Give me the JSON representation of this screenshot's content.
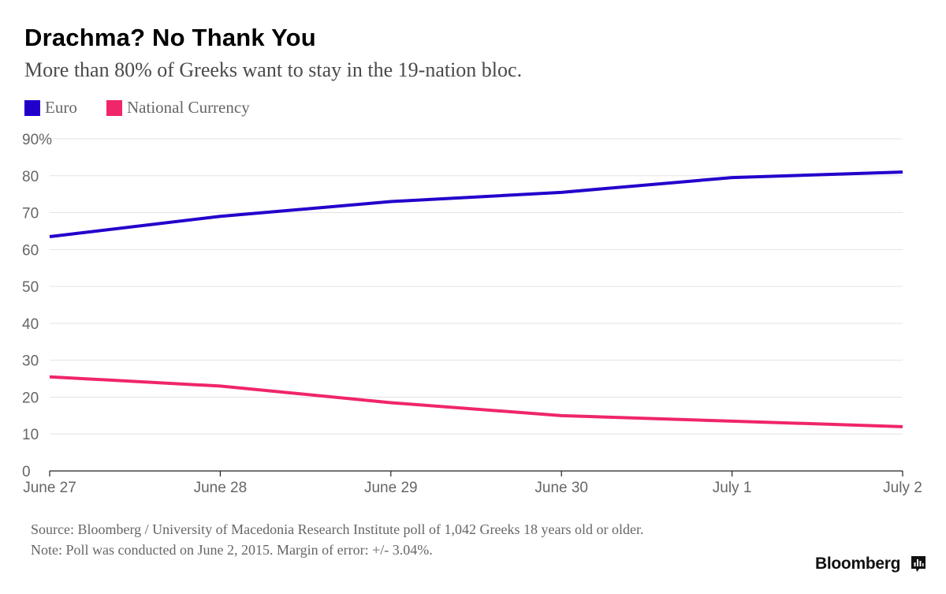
{
  "title": "Drachma? No Thank You",
  "subtitle": "More than 80% of Greeks want to stay in the 19-nation bloc.",
  "footer": {
    "source": "Source: Bloomberg / University of Macedonia Research Institute poll of 1,042 Greeks 18 years old or older.",
    "note": "Note: Poll was conducted on June 2, 2015. Margin of error: +/- 3.04%."
  },
  "brand": "Bloomberg",
  "brand_icon": "bloomberg-terminal-icon",
  "chart_data": {
    "type": "line",
    "title": "Drachma? No Thank You",
    "subtitle": "More than 80% of Greeks want to stay in the 19-nation bloc.",
    "xlabel": "",
    "ylabel": "",
    "categories": [
      "June 27",
      "June 28",
      "June 29",
      "June 30",
      "July 1",
      "July 2"
    ],
    "ylim": [
      0,
      90
    ],
    "yticks": [
      0,
      10,
      20,
      30,
      40,
      50,
      60,
      70,
      80,
      90
    ],
    "ytick_labels": [
      "0",
      "10",
      "20",
      "30",
      "40",
      "50",
      "60",
      "70",
      "80",
      "90%"
    ],
    "grid": true,
    "legend": "top-left",
    "series": [
      {
        "name": "Euro",
        "color": "#2200cc",
        "values": [
          63.5,
          69,
          73,
          75.5,
          79.5,
          81
        ]
      },
      {
        "name": "National Currency",
        "color": "#f0256a",
        "values": [
          25.5,
          23,
          18.5,
          15,
          13.5,
          12
        ]
      }
    ]
  }
}
